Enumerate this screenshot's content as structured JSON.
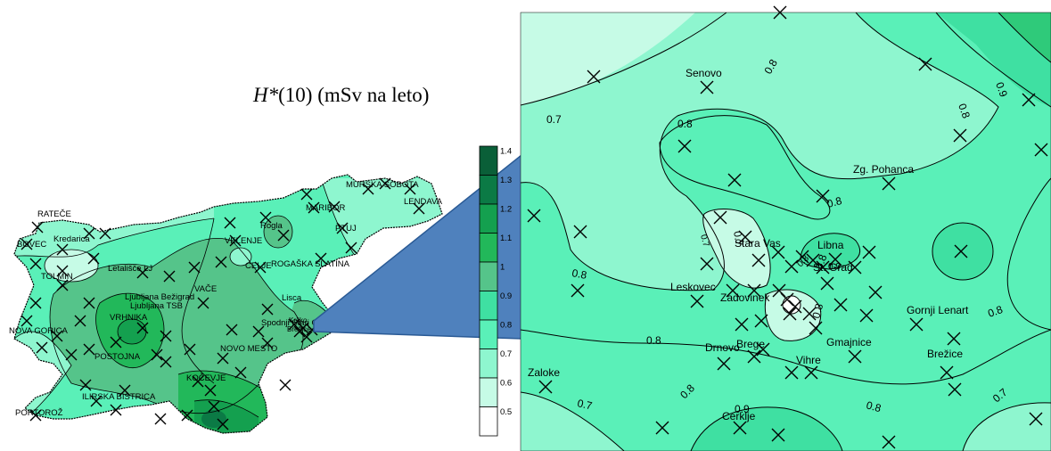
{
  "title": {
    "symbol": "H*",
    "rest": "(10) (mSv na leto)"
  },
  "legend": {
    "ticks": [
      "1.4",
      "1.3",
      "1.2",
      "1.1",
      "1",
      "0.9",
      "0.8",
      "0.7",
      "0.6",
      "0.5"
    ],
    "colors": [
      "#0a5f38",
      "#0b7a45",
      "#14a04f",
      "#22b85a",
      "#55c48a",
      "#3fe0a2",
      "#5af0b8",
      "#8ef6cf",
      "#c6fbe6",
      "#ffffff"
    ]
  },
  "slovenia_map": {
    "labels": [
      "RATEČE",
      "BOVEC",
      "Kredarica",
      "TOLMIN",
      "NOVA GORICA",
      "PORTOROŽ",
      "ILIRSKA BISTRICA",
      "POSTOJNA",
      "VRHNIKA",
      "Ljubljana Bežigrad",
      "Ljubljana TSB",
      "Letališče LJ",
      "VAČE",
      "CELJE",
      "VELENJE",
      "Rogla",
      "MARIBOR",
      "MURSKA SOBOTA",
      "LENDAVA",
      "PTUJ",
      "ROGAŠKA SLATINA",
      "Lisca",
      "Spodnji Stari Grad",
      "Krško",
      "Brežice",
      "NOVO MESTO",
      "KOČEVJE"
    ]
  },
  "detail_map": {
    "place_labels": [
      "Senovo",
      "Zg. Pohanca",
      "Stara Vas",
      "Libna",
      "St. Grad",
      "Leskovec",
      "Zadovinek",
      "Gornji Lenart",
      "Drnovo",
      "Brege",
      "Gmajnice",
      "Vihre",
      "Brežice",
      "Zaloke",
      "Cerklje"
    ],
    "contour_labels": [
      "0.7",
      "0.8",
      "0.8",
      "0.9",
      "0.8",
      "0.8",
      "0.7",
      "0.8",
      "0.8",
      "0.8",
      "0.8",
      "0.8",
      "0.7",
      "0.8",
      "0.9",
      "0.8",
      "0.7",
      "0.7",
      "0.8",
      "0.9"
    ]
  }
}
